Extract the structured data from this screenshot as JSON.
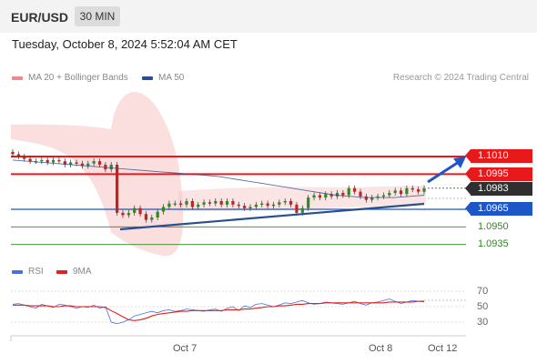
{
  "header": {
    "pair": "EUR/USD",
    "timeframe": "30 MIN",
    "datetime": "Tuesday, October 8, 2024 5:52:04 AM CET"
  },
  "legend": {
    "ma20": "MA 20 + Bollinger Bands",
    "ma50": "MA 50",
    "copyright": "Research © 2024 Trading Central"
  },
  "rsi_legend": {
    "rsi": "RSI",
    "ma9": "9MA"
  },
  "colors": {
    "resistance": "#e8191b",
    "pivot": "#1e55c7",
    "support": "#2d8a1f",
    "bollinger": "#f7c4c4",
    "candle_up": "#2d8a1f",
    "candle_down": "#c8201d",
    "rsi": "#4a6fe0",
    "rsi_ma": "#e02020"
  },
  "levels": {
    "r2": "1.1010",
    "r1": "1.0995",
    "last": "1.0983",
    "pivot": "1.0965",
    "s1": "1.0950",
    "s2": "1.0935"
  },
  "x_ticks": [
    "Oct 7",
    "Oct 8",
    "Oct 12"
  ],
  "rsi_ticks": [
    "70",
    "50",
    "30"
  ],
  "chart_data": [
    {
      "type": "line",
      "title": "EUR/USD 30 MIN",
      "y_range": [
        1.0925,
        1.1025
      ],
      "horizontal_levels": [
        {
          "name": "1.1010",
          "value": 1.101,
          "color": "#e8191b"
        },
        {
          "name": "1.0995",
          "value": 1.0995,
          "color": "#e8191b"
        },
        {
          "name": "1.0965",
          "value": 1.0965,
          "color": "#1e55c7"
        },
        {
          "name": "1.0950",
          "value": 1.095,
          "color": "#2d8a1f"
        },
        {
          "name": "1.0935",
          "value": 1.0935,
          "color": "#2d8a1f"
        }
      ],
      "last_price": 1.0983,
      "price_series": [
        1.1012,
        1.101,
        1.1008,
        1.1006,
        1.1006,
        1.1007,
        1.1005,
        1.1007,
        1.1006,
        1.1003,
        1.1005,
        1.1004,
        1.1002,
        1.1004,
        1.1006,
        1.1003,
        1.0999,
        1.1003,
        1.0962,
        1.096,
        1.0962,
        1.0966,
        1.0961,
        1.0956,
        1.0958,
        1.0963,
        1.0967,
        1.097,
        1.097,
        1.0969,
        1.0972,
        1.0967,
        1.0969,
        1.0971,
        1.097,
        1.0972,
        1.0969,
        1.0972,
        1.0969,
        1.0968,
        1.0966,
        1.0967,
        1.0969,
        1.097,
        1.0968,
        1.0969,
        1.0971,
        1.0972,
        1.0969,
        1.0962,
        1.0966,
        1.0975,
        1.0977,
        1.0975,
        1.0978,
        1.0976,
        1.0979,
        1.0977,
        1.0983,
        1.098,
        1.0976,
        1.0973,
        1.0975,
        1.0976,
        1.0977,
        1.0979,
        1.0981,
        1.0978,
        1.0983,
        1.0982,
        1.098,
        1.0983
      ],
      "ma50_series": [
        1.1007,
        1.1006,
        1.1005,
        1.1004,
        1.1003,
        1.1002,
        1.1001,
        1.1,
        1.0999,
        1.0998,
        1.0997,
        1.0996,
        1.0995,
        1.0994,
        1.0993,
        1.0991,
        1.0989,
        1.0987,
        1.0985,
        1.0983,
        1.0981,
        1.0979,
        1.0977,
        1.0976,
        1.0975,
        1.0975,
        1.0975,
        1.0976,
        1.0977
      ],
      "trendlines": [
        {
          "name": "support-trendline",
          "from": {
            "x": 1,
            "y": 1.0952
          },
          "to": {
            "x": 8,
            "y": 1.097
          }
        },
        {
          "name": "projection-arrow",
          "from": {
            "x": 8.2,
            "y": 1.0984
          },
          "to": {
            "x": 9.2,
            "y": 1.1007
          }
        }
      ]
    },
    {
      "type": "line",
      "title": "RSI",
      "y_range": [
        20,
        80
      ],
      "ticks": [
        70,
        50,
        30
      ],
      "series": [
        {
          "name": "RSI",
          "values": [
            53,
            54,
            52,
            50,
            48,
            53,
            51,
            49,
            53,
            52,
            50,
            48,
            50,
            49,
            52,
            48,
            50,
            30,
            28,
            30,
            33,
            38,
            40,
            42,
            44,
            42,
            45,
            46,
            44,
            45,
            47,
            46,
            45,
            44,
            46,
            47,
            44,
            48,
            50,
            45,
            51,
            49,
            53,
            54,
            52,
            50,
            52,
            55,
            54,
            56,
            58,
            55,
            53,
            54,
            56,
            55,
            54,
            53,
            55,
            57,
            54,
            52,
            55,
            56,
            58,
            60,
            57,
            54,
            56,
            58,
            57,
            56
          ]
        },
        {
          "name": "9MA",
          "values": [
            52,
            52,
            52,
            51,
            51,
            51,
            51,
            50,
            50,
            51,
            51,
            50,
            50,
            50,
            50,
            50,
            49,
            45,
            41,
            37,
            33,
            32,
            33,
            35,
            38,
            40,
            41,
            42,
            43,
            44,
            44,
            45,
            45,
            45,
            45,
            45,
            45,
            46,
            46,
            46,
            47,
            47,
            48,
            49,
            50,
            50,
            51,
            51,
            52,
            53,
            53,
            54,
            54,
            54,
            55,
            55,
            55,
            55,
            55,
            55,
            55,
            55,
            55,
            55,
            55,
            56,
            56,
            56,
            56,
            56,
            57,
            57
          ]
        }
      ]
    }
  ]
}
